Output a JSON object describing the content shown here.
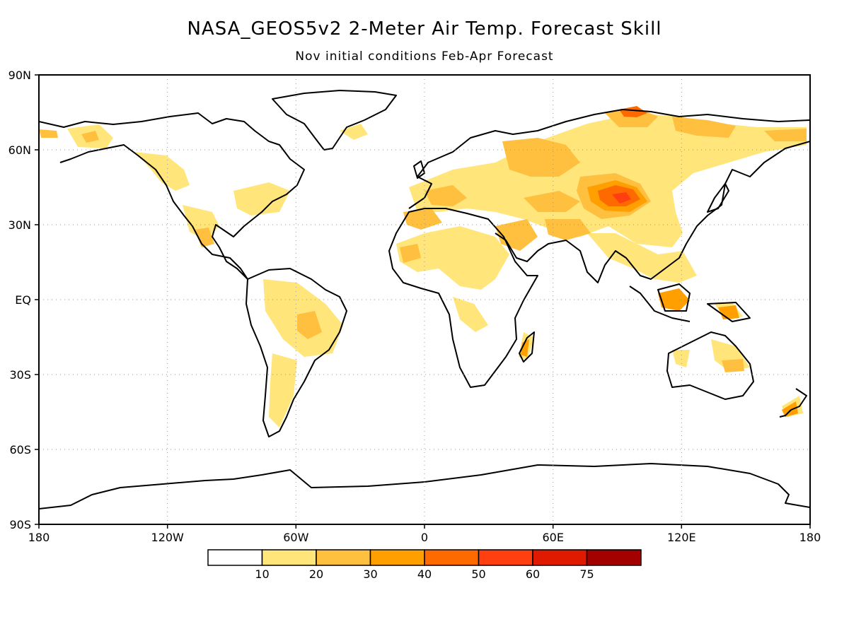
{
  "title": "NASA_GEOS5v2 2-Meter Air Temp. Forecast Skill",
  "subtitle": "Nov initial conditions  Feb-Apr Forecast",
  "map": {
    "projection": "cylindrical equidistant",
    "gridlines": "dotted",
    "lat_labels": [
      "90N",
      "60N",
      "30N",
      "EQ",
      "30S",
      "60S",
      "90S"
    ],
    "lon_labels": [
      "180",
      "120W",
      "60W",
      "0",
      "60E",
      "120E",
      "180"
    ]
  },
  "colorbar": {
    "colors": [
      "#ffffff",
      "#ffe57a",
      "#ffbf3f",
      "#ff9f00",
      "#ff6a00",
      "#ff3f10",
      "#e01a00",
      "#a30000"
    ],
    "labels": [
      "10",
      "20",
      "30",
      "40",
      "50",
      "60",
      "75"
    ]
  },
  "colors": {
    "skill_10_20": "#ffe57a",
    "skill_20_30": "#ffbf3f",
    "skill_30_40": "#ff9f00",
    "skill_40_50": "#ff6a00",
    "skill_50_60": "#ff3f10"
  }
}
